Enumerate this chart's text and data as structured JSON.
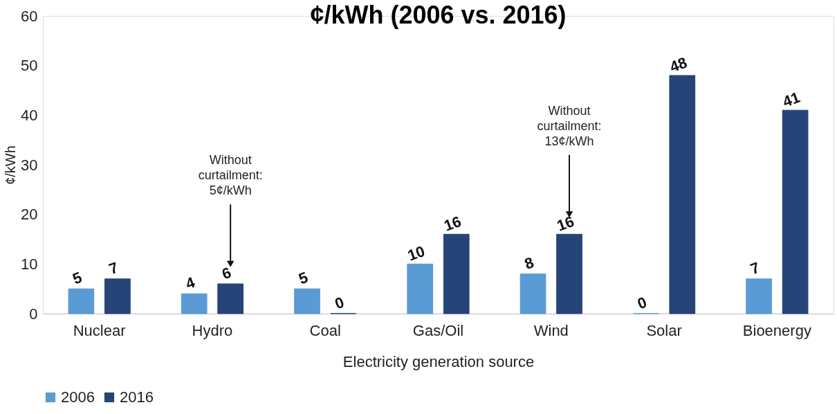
{
  "chart_data": {
    "type": "bar",
    "title": "¢/kWh (2006 vs. 2016)",
    "xlabel": "Electricity generation source",
    "ylabel": "¢/kWh",
    "categories": [
      "Nuclear",
      "Hydro",
      "Coal",
      "Gas/Oil",
      "Wind",
      "Solar",
      "Bioenergy"
    ],
    "series": [
      {
        "name": "2006",
        "color": "#5b9bd5",
        "values": [
          5,
          4,
          5,
          10,
          8,
          0,
          7
        ]
      },
      {
        "name": "2016",
        "color": "#264478",
        "values": [
          7,
          6,
          0,
          16,
          16,
          48,
          41
        ]
      }
    ],
    "data_labels": true,
    "ylim": [
      0,
      60
    ],
    "yticks": [
      0,
      10,
      20,
      30,
      40,
      50,
      60
    ],
    "grid": false,
    "legend": "bottom",
    "annotations": [
      "Without\ncurtailment:\n5¢/kWh",
      "Without\ncurtailment:\n13¢/kWh"
    ]
  }
}
